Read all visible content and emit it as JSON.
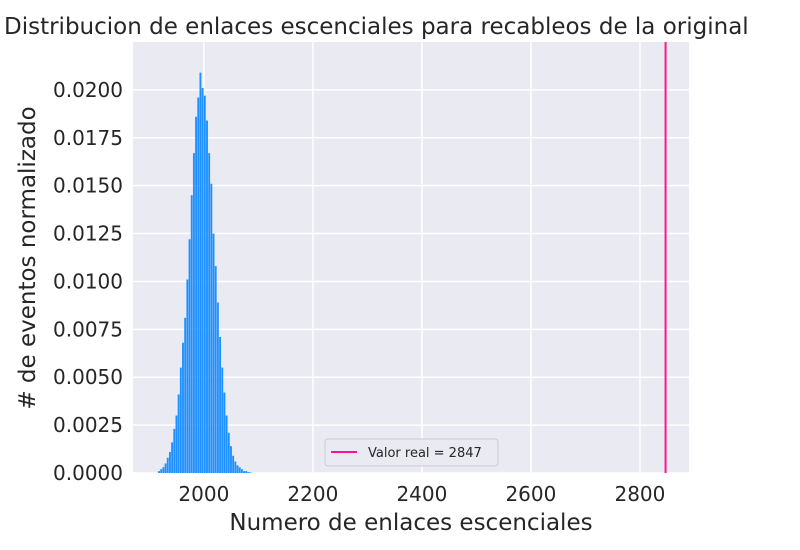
{
  "chart_data": {
    "type": "bar",
    "title": "Distribucion de enlaces escenciales para recableos de la original",
    "xlabel": "Numero de enlaces escenciales",
    "ylabel": "# de eventos normalizado",
    "xlim": [
      1870,
      2890
    ],
    "ylim": [
      0,
      0.0225
    ],
    "xticks": [
      2000,
      2200,
      2400,
      2600,
      2800
    ],
    "xtick_labels": [
      "2000",
      "2200",
      "2400",
      "2600",
      "2800"
    ],
    "yticks": [
      0,
      0.0025,
      0.005,
      0.0075,
      0.01,
      0.0125,
      0.015,
      0.0175,
      0.02
    ],
    "ytick_labels": [
      "0.0000",
      "0.0025",
      "0.0050",
      "0.0075",
      "0.0100",
      "0.0125",
      "0.0150",
      "0.0175",
      "0.0200"
    ],
    "grid": true,
    "legend_location": "lower center",
    "bar_color": "#1e90ff",
    "background_color": "#eaeaf2",
    "histogram": {
      "bin_centers": [
        1918,
        1922,
        1926,
        1930,
        1934,
        1938,
        1942,
        1946,
        1950,
        1954,
        1958,
        1962,
        1966,
        1970,
        1974,
        1978,
        1982,
        1986,
        1990,
        1994,
        1998,
        2002,
        2006,
        2010,
        2014,
        2018,
        2022,
        2026,
        2030,
        2034,
        2038,
        2042,
        2046,
        2050,
        2054,
        2058,
        2062,
        2066,
        2070,
        2074,
        2078,
        2082,
        2086
      ],
      "values": [
        0.0001,
        0.0002,
        0.0003,
        0.0005,
        0.0008,
        0.0011,
        0.0016,
        0.0023,
        0.003,
        0.0041,
        0.0055,
        0.0068,
        0.0081,
        0.0101,
        0.0122,
        0.0145,
        0.0167,
        0.0186,
        0.0196,
        0.0209,
        0.0201,
        0.0197,
        0.0184,
        0.0167,
        0.0151,
        0.0125,
        0.0108,
        0.0089,
        0.0071,
        0.0055,
        0.0042,
        0.003,
        0.0021,
        0.0014,
        0.0009,
        0.0006,
        0.0004,
        0.0003,
        0.0002,
        0.0001,
        0.0001,
        5e-05,
        3e-05
      ]
    },
    "reference_line": {
      "x": 2847,
      "color": "#ff1493",
      "label": "Valor real = 2847"
    }
  }
}
